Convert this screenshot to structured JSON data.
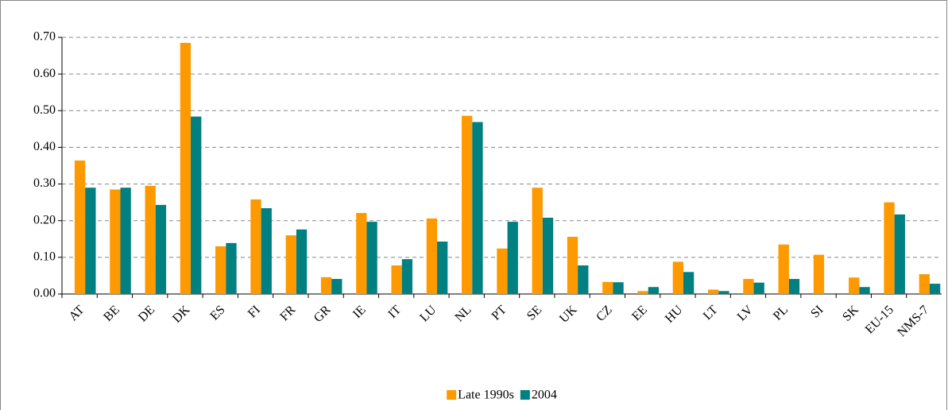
{
  "chart_data": {
    "type": "bar",
    "categories": [
      "AT",
      "BE",
      "DE",
      "DK",
      "ES",
      "FI",
      "FR",
      "GR",
      "IE",
      "IT",
      "LU",
      "NL",
      "PT",
      "SE",
      "UK",
      "CZ",
      "EE",
      "HU",
      "LT",
      "LV",
      "PL",
      "SI",
      "SK",
      "EU-15",
      "NMS-7"
    ],
    "series": [
      {
        "name": "Late 1990s",
        "color": "#ff9900",
        "values": [
          0.364,
          0.285,
          0.295,
          0.685,
          0.13,
          0.258,
          0.16,
          0.046,
          0.221,
          0.078,
          0.206,
          0.486,
          0.124,
          0.29,
          0.156,
          0.033,
          0.008,
          0.088,
          0.012,
          0.041,
          0.135,
          0.107,
          0.045,
          0.25,
          0.054
        ]
      },
      {
        "name": "2004",
        "color": "#008080",
        "values": [
          0.29,
          0.29,
          0.243,
          0.484,
          0.139,
          0.234,
          0.176,
          0.041,
          0.197,
          0.095,
          0.143,
          0.469,
          0.197,
          0.208,
          0.078,
          0.032,
          0.019,
          0.06,
          0.008,
          0.031,
          0.041,
          null,
          0.019,
          0.217,
          0.028
        ]
      }
    ],
    "ylim": [
      0,
      0.7
    ],
    "yticks": [
      {
        "value": 0,
        "label": "0.00"
      },
      {
        "value": 0.1,
        "label": "0.10"
      },
      {
        "value": 0.2,
        "label": "0.20"
      },
      {
        "value": 0.3,
        "label": "0.30"
      },
      {
        "value": 0.4,
        "label": "0.40"
      },
      {
        "value": 0.5,
        "label": "0.50"
      },
      {
        "value": 0.6,
        "label": "0.60"
      },
      {
        "value": 0.7,
        "label": "0.70"
      }
    ],
    "grid": true,
    "legend": "bottom"
  }
}
